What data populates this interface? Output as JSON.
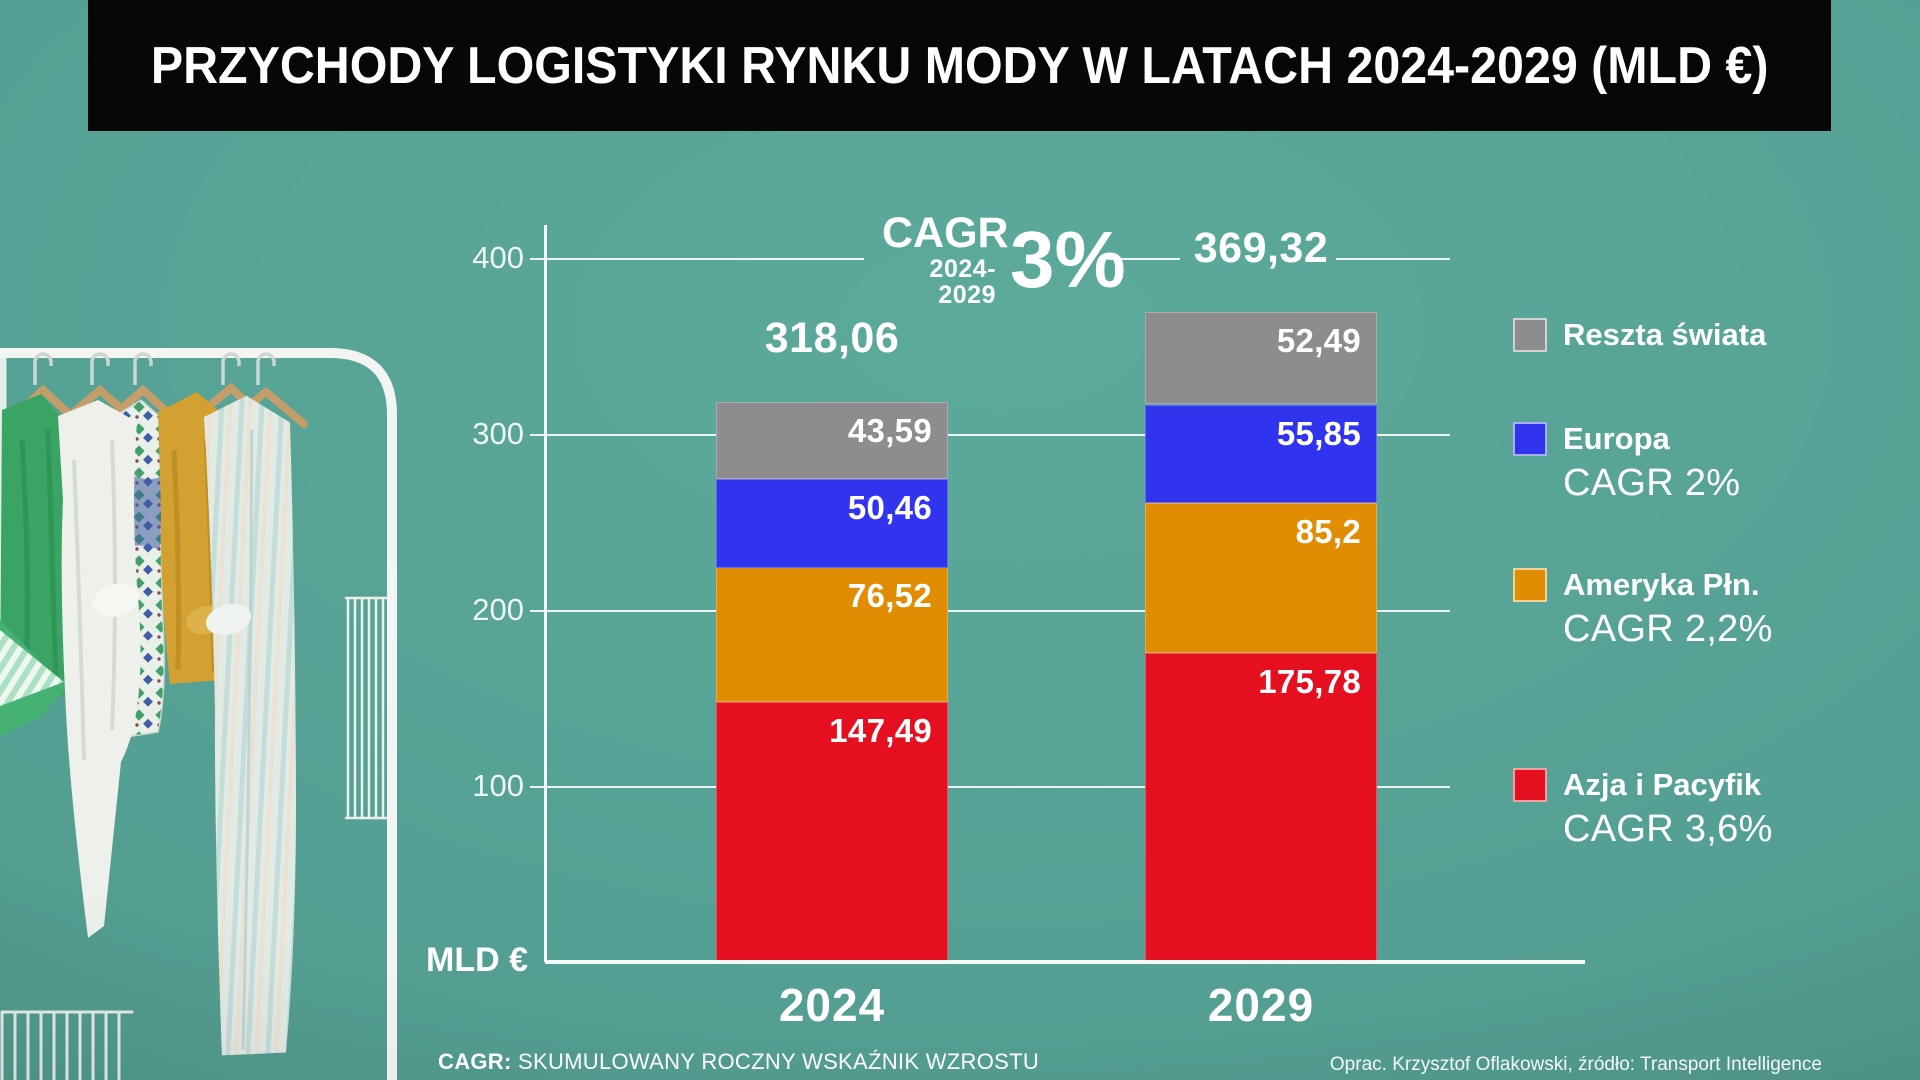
{
  "title": "PRZYCHODY LOGISTYKI RYNKU MODY W LATACH 2024-2029 (MLD €)",
  "chart_data": {
    "type": "bar",
    "stacked": true,
    "unit_label": "MLD €",
    "categories": [
      "2024",
      "2029"
    ],
    "series": [
      {
        "name": "Azja i Pacyfik",
        "color": "#e50f1f",
        "values": [
          147.49,
          175.78
        ],
        "labels": [
          "147,49",
          "175,78"
        ]
      },
      {
        "name": "Ameryka Płn.",
        "color": "#e08d04",
        "values": [
          76.52,
          85.2
        ],
        "labels": [
          "76,52",
          "85,2"
        ]
      },
      {
        "name": "Europa",
        "color": "#3034ef",
        "values": [
          50.46,
          55.85
        ],
        "labels": [
          "50,46",
          "55,85"
        ]
      },
      {
        "name": "Reszta świata",
        "color": "#8d8d8f",
        "values": [
          43.59,
          52.49
        ],
        "labels": [
          "43,59",
          "52,49"
        ]
      }
    ],
    "totals": {
      "values": [
        318.06,
        369.32
      ],
      "labels": [
        "318,06",
        "369,32"
      ]
    },
    "y_axis": {
      "ticks": [
        400,
        300,
        200,
        100
      ],
      "range": [
        0,
        400
      ],
      "gridlines": true
    },
    "cagr_annotation": {
      "label": "CAGR",
      "range": "2024-2029",
      "value": "3%"
    }
  },
  "legend": [
    {
      "label": "Reszta świata",
      "color": "#8d8d8f",
      "cagr": ""
    },
    {
      "label": "Europa",
      "color": "#3034ef",
      "cagr": "CAGR 2%"
    },
    {
      "label": "Ameryka Płn.",
      "color": "#e08d04",
      "cagr": "CAGR 2,2%"
    },
    {
      "label": "Azja i Pacyfik",
      "color": "#e50f1f",
      "cagr": "CAGR 3,6%"
    }
  ],
  "footnote": {
    "term": "CAGR:",
    "definition": " SKUMULOWANY ROCZNY WSKAŹNIK WZROSTU"
  },
  "credit": "Oprac. Krzysztof Oflakowski, źródło: Transport Intelligence",
  "colors": {
    "background": "#55a094",
    "title_bar": "#060707",
    "text": "#ffffff"
  }
}
